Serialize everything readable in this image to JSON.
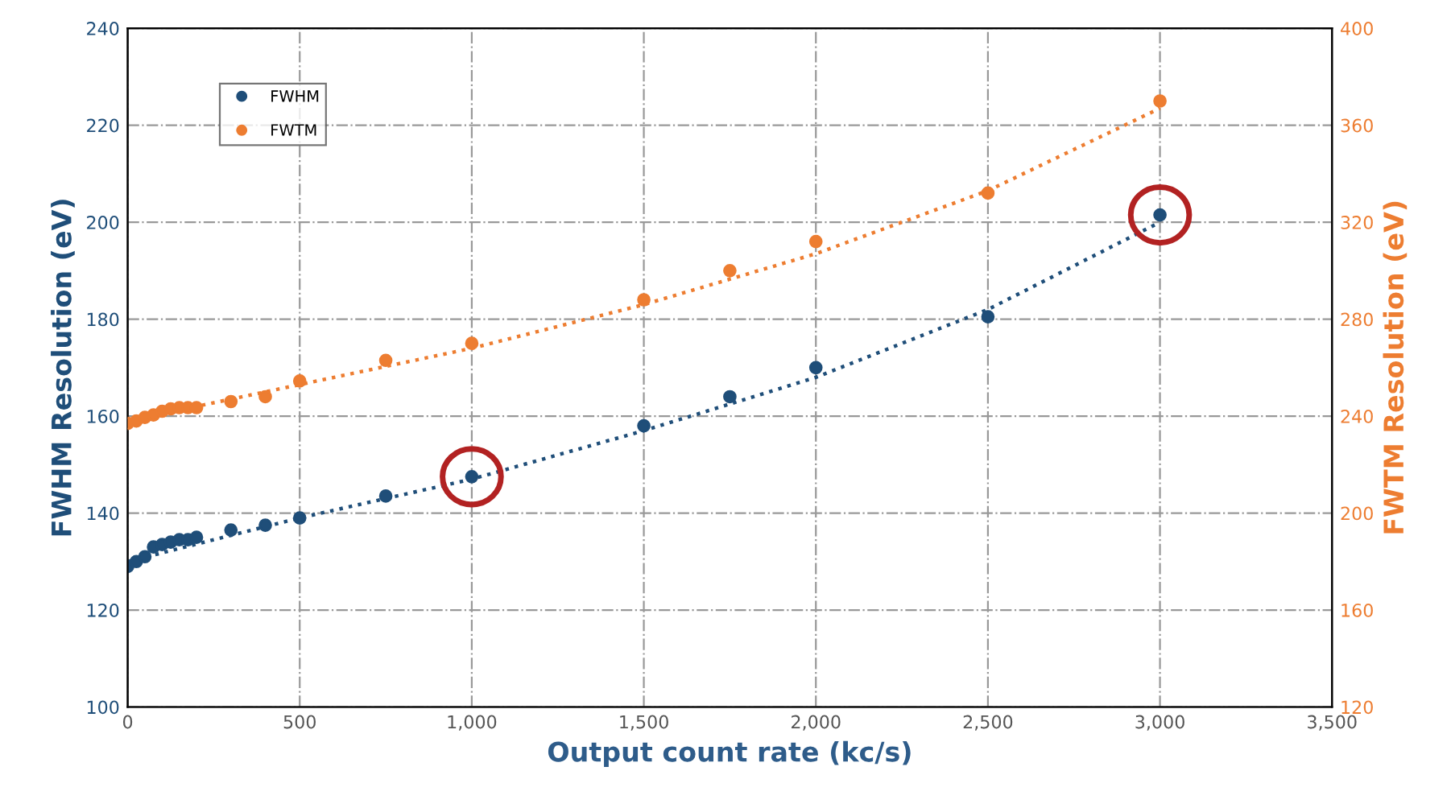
{
  "chart_data": {
    "type": "scatter",
    "xlabel": "Output count rate (kc/s)",
    "ylabel": "FWHM Resolution (eV)",
    "y2label": "FWTM Resolution (eV)",
    "xlim": [
      0,
      3500
    ],
    "xticks": [
      0,
      500,
      {
        "value": 1000,
        "label": "1,000"
      },
      {
        "value": 1500,
        "label": "1,500"
      },
      {
        "value": 2000,
        "label": "2,000"
      },
      {
        "value": 2500,
        "label": "2,500"
      },
      {
        "value": 3000,
        "label": "3,000"
      },
      {
        "value": 3500,
        "label": "3,500"
      }
    ],
    "ylim": [
      100,
      240
    ],
    "yticks": [
      100,
      120,
      140,
      160,
      180,
      200,
      220,
      240
    ],
    "y2lim": [
      120,
      400
    ],
    "y2ticks": [
      120,
      160,
      200,
      240,
      280,
      320,
      360,
      400
    ],
    "grid": true,
    "legend": "top left",
    "series": [
      {
        "name": "FWHM",
        "marker": "circle",
        "color": "#1f4e79",
        "x": [
          0,
          25,
          50,
          75,
          100,
          125,
          150,
          175,
          200,
          300,
          400,
          500,
          750,
          1000,
          1500,
          1750,
          2000,
          2500,
          3000
        ],
        "values": [
          129,
          130,
          131,
          133,
          133.5,
          134,
          134.5,
          134.5,
          135,
          136.5,
          137.5,
          139,
          143.5,
          147.5,
          158,
          164,
          170,
          180.5,
          201.5
        ]
      },
      {
        "name": "FWTM",
        "marker": "circle",
        "axis": "y2",
        "color": "#ed7d31",
        "x": [
          0,
          25,
          50,
          75,
          100,
          125,
          150,
          175,
          200,
          300,
          400,
          500,
          750,
          1000,
          1500,
          1750,
          2000,
          2500,
          3000
        ],
        "values": [
          237,
          238,
          239.5,
          240.5,
          242,
          243,
          243.5,
          243.5,
          243.5,
          246,
          248,
          254.5,
          263,
          270,
          288,
          300,
          312,
          332,
          370
        ]
      },
      {
        "type": "line",
        "line_style": "dotted",
        "color": "#1f4e79",
        "x": [
          0,
          500,
          1000,
          1500,
          2000,
          2500,
          3000
        ],
        "values": [
          130,
          139,
          147,
          157,
          168,
          182,
          200
        ]
      },
      {
        "type": "line",
        "line_style": "dotted",
        "axis": "y2",
        "color": "#ed7d31",
        "x": [
          0,
          500,
          1000,
          1500,
          2000,
          2500,
          3000
        ],
        "values": [
          238,
          253,
          268,
          286,
          307,
          333,
          367
        ]
      }
    ]
  }
}
